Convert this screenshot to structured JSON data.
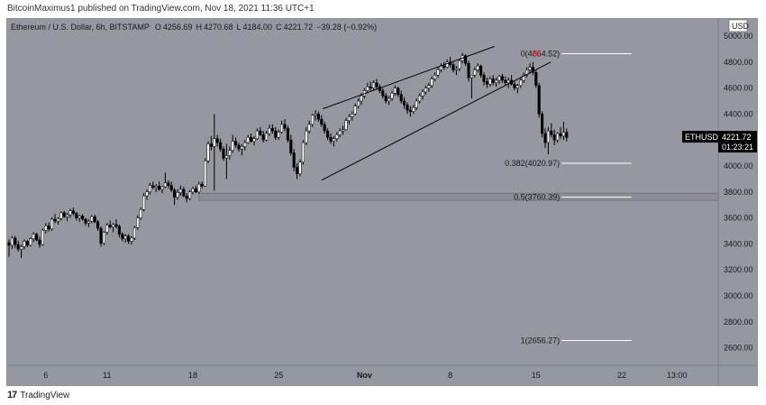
{
  "header": {
    "published": "BitcoinMaximus1 published on TradingView.com, Nov 18, 2021 11:36 UTC+1"
  },
  "legend": {
    "symbol": "Ethereum / U.S. Dollar, 6h, BITSTAMP",
    "o_label": "O",
    "o": "4256.69",
    "h_label": "H",
    "h": "4270.68",
    "l_label": "L",
    "l": "4184.00",
    "c_label": "C",
    "c": "4221.72",
    "change": "−39.28 (−0.92%)"
  },
  "price_tag": {
    "symbol": "ETHUSD",
    "price": "4221.72",
    "countdown": "01:23:21"
  },
  "footer": {
    "logo": "17",
    "brand": "TradingView"
  },
  "colors": {
    "plot_bg": "#9598a1",
    "axis_bg": "#9598a1",
    "up": "#ffffff",
    "down": "#000000",
    "marker": "#e53935",
    "fib_line": "#ffffff",
    "trend_line": "#000000"
  },
  "chart_data": {
    "type": "candlestick",
    "currency_label": "USD",
    "ylim": [
      2450,
      5150
    ],
    "y_ticks": [
      {
        "v": 5000,
        "label": "5000.00"
      },
      {
        "v": 4800,
        "label": "4800.00"
      },
      {
        "v": 4600,
        "label": "4600.00"
      },
      {
        "v": 4400,
        "label": "4400.00"
      },
      {
        "v": 4200,
        "label": "4200.00"
      },
      {
        "v": 4000,
        "label": "4000.00"
      },
      {
        "v": 3800,
        "label": "3800.00"
      },
      {
        "v": 3600,
        "label": "3600.00"
      },
      {
        "v": 3400,
        "label": "3400.00"
      },
      {
        "v": 3200,
        "label": "3200.00"
      },
      {
        "v": 3000,
        "label": "3000.00"
      },
      {
        "v": 2800,
        "label": "2800.00"
      },
      {
        "v": 2600,
        "label": "2600.00"
      }
    ],
    "x_ticks": [
      {
        "d": 6,
        "label": "6"
      },
      {
        "d": 11,
        "label": "11"
      },
      {
        "d": 18,
        "label": "18"
      },
      {
        "d": 25,
        "label": "25"
      },
      {
        "d": 32,
        "label": "Nov"
      },
      {
        "d": 39,
        "label": "8"
      },
      {
        "d": 46,
        "label": "15"
      },
      {
        "d": 53,
        "label": "22"
      },
      {
        "d": 57.5,
        "label": "13:00"
      }
    ],
    "xlim": [
      2.5,
      60
    ],
    "fib_levels": [
      {
        "ratio": "0",
        "value": 4864.52,
        "label": "0(4864.52)"
      },
      {
        "ratio": "0.382",
        "value": 4020.97,
        "label": "0.382(4020.97)"
      },
      {
        "ratio": "0.5",
        "value": 3760.39,
        "label": "0.5(3760.39)"
      },
      {
        "ratio": "1",
        "value": 2656.27,
        "label": "1(2656.27)"
      }
    ],
    "fib_d_range": [
      47.5,
      53.5
    ],
    "support_band": {
      "low": 3735,
      "high": 3790,
      "d_start": 18.5
    },
    "channel": {
      "upper": {
        "d1": 28.6,
        "y1": 4440,
        "d2": 42.6,
        "y2": 4920
      },
      "lower": {
        "d1": 28.5,
        "y1": 3890,
        "d2": 47.2,
        "y2": 4800
      }
    },
    "marker": {
      "d": 46,
      "y": 4845
    },
    "candles": [
      [
        3,
        3410,
        3435,
        3300,
        3390
      ],
      [
        3.25,
        3390,
        3460,
        3360,
        3445
      ],
      [
        3.5,
        3445,
        3460,
        3370,
        3395
      ],
      [
        3.75,
        3395,
        3425,
        3340,
        3360
      ],
      [
        4,
        3360,
        3395,
        3290,
        3380
      ],
      [
        4.25,
        3380,
        3435,
        3355,
        3420
      ],
      [
        4.5,
        3420,
        3430,
        3375,
        3390
      ],
      [
        4.75,
        3390,
        3450,
        3380,
        3440
      ],
      [
        5,
        3440,
        3490,
        3415,
        3475
      ],
      [
        5.25,
        3475,
        3485,
        3420,
        3430
      ],
      [
        5.5,
        3430,
        3455,
        3370,
        3395
      ],
      [
        5.75,
        3395,
        3520,
        3385,
        3505
      ],
      [
        6,
        3505,
        3560,
        3480,
        3540
      ],
      [
        6.25,
        3540,
        3565,
        3495,
        3515
      ],
      [
        6.5,
        3515,
        3605,
        3500,
        3590
      ],
      [
        6.75,
        3590,
        3630,
        3560,
        3575
      ],
      [
        7,
        3575,
        3605,
        3550,
        3595
      ],
      [
        7.25,
        3595,
        3650,
        3580,
        3640
      ],
      [
        7.5,
        3640,
        3655,
        3600,
        3610
      ],
      [
        7.75,
        3610,
        3640,
        3575,
        3625
      ],
      [
        8,
        3625,
        3670,
        3600,
        3655
      ],
      [
        8.25,
        3655,
        3680,
        3620,
        3635
      ],
      [
        8.5,
        3635,
        3645,
        3580,
        3600
      ],
      [
        8.75,
        3600,
        3625,
        3570,
        3615
      ],
      [
        9,
        3615,
        3630,
        3580,
        3590
      ],
      [
        9.25,
        3590,
        3600,
        3540,
        3560
      ],
      [
        9.5,
        3560,
        3590,
        3530,
        3575
      ],
      [
        9.75,
        3575,
        3620,
        3560,
        3610
      ],
      [
        10,
        3610,
        3625,
        3560,
        3570
      ],
      [
        10.25,
        3570,
        3585,
        3500,
        3520
      ],
      [
        10.5,
        3520,
        3535,
        3380,
        3405
      ],
      [
        10.75,
        3405,
        3500,
        3390,
        3490
      ],
      [
        11,
        3490,
        3560,
        3470,
        3545
      ],
      [
        11.25,
        3545,
        3580,
        3520,
        3530
      ],
      [
        11.5,
        3530,
        3560,
        3490,
        3550
      ],
      [
        11.75,
        3550,
        3590,
        3520,
        3535
      ],
      [
        12,
        3535,
        3550,
        3450,
        3475
      ],
      [
        12.25,
        3475,
        3490,
        3420,
        3440
      ],
      [
        12.5,
        3440,
        3475,
        3410,
        3460
      ],
      [
        12.75,
        3460,
        3475,
        3400,
        3420
      ],
      [
        13,
        3420,
        3460,
        3395,
        3445
      ],
      [
        13.25,
        3445,
        3540,
        3430,
        3525
      ],
      [
        13.5,
        3525,
        3620,
        3510,
        3600
      ],
      [
        13.75,
        3600,
        3680,
        3585,
        3665
      ],
      [
        14,
        3665,
        3790,
        3650,
        3770
      ],
      [
        14.25,
        3770,
        3820,
        3740,
        3800
      ],
      [
        14.5,
        3800,
        3870,
        3780,
        3850
      ],
      [
        14.75,
        3850,
        3880,
        3820,
        3835
      ],
      [
        15,
        3835,
        3860,
        3800,
        3845
      ],
      [
        15.25,
        3845,
        3880,
        3810,
        3820
      ],
      [
        15.5,
        3820,
        3850,
        3790,
        3840
      ],
      [
        15.75,
        3840,
        3950,
        3830,
        3870
      ],
      [
        16,
        3870,
        3890,
        3830,
        3850
      ],
      [
        16.25,
        3850,
        3880,
        3800,
        3815
      ],
      [
        16.5,
        3815,
        3830,
        3700,
        3760
      ],
      [
        16.75,
        3760,
        3820,
        3740,
        3795
      ],
      [
        17,
        3795,
        3850,
        3770,
        3820
      ],
      [
        17.25,
        3820,
        3840,
        3760,
        3770
      ],
      [
        17.5,
        3770,
        3790,
        3720,
        3750
      ],
      [
        17.75,
        3750,
        3815,
        3735,
        3800
      ],
      [
        18,
        3800,
        3840,
        3780,
        3825
      ],
      [
        18.25,
        3825,
        3850,
        3790,
        3800
      ],
      [
        18.5,
        3800,
        3880,
        3785,
        3860
      ],
      [
        18.75,
        3860,
        3880,
        3830,
        3845
      ],
      [
        19,
        3845,
        4060,
        3840,
        4040
      ],
      [
        19.25,
        4040,
        4190,
        4020,
        4170
      ],
      [
        19.5,
        4170,
        4230,
        4120,
        4150
      ],
      [
        19.75,
        4150,
        4400,
        3810,
        4210
      ],
      [
        20,
        4210,
        4240,
        4150,
        4180
      ],
      [
        20.25,
        4180,
        4210,
        4110,
        4130
      ],
      [
        20.5,
        4130,
        4150,
        4040,
        4060
      ],
      [
        20.75,
        4060,
        4170,
        3900,
        4080
      ],
      [
        21,
        4080,
        4150,
        4050,
        4120
      ],
      [
        21.25,
        4120,
        4240,
        4100,
        4190
      ],
      [
        21.5,
        4190,
        4220,
        4140,
        4160
      ],
      [
        21.75,
        4160,
        4180,
        4110,
        4130
      ],
      [
        22,
        4130,
        4170,
        4080,
        4150
      ],
      [
        22.25,
        4150,
        4200,
        4120,
        4180
      ],
      [
        22.5,
        4180,
        4240,
        4170,
        4220
      ],
      [
        22.75,
        4220,
        4250,
        4180,
        4190
      ],
      [
        23,
        4190,
        4230,
        4160,
        4210
      ],
      [
        23.25,
        4210,
        4290,
        4200,
        4270
      ],
      [
        23.5,
        4270,
        4300,
        4230,
        4240
      ],
      [
        23.75,
        4240,
        4270,
        4180,
        4200
      ],
      [
        24,
        4200,
        4270,
        4190,
        4250
      ],
      [
        24.25,
        4250,
        4320,
        4230,
        4290
      ],
      [
        24.5,
        4290,
        4320,
        4250,
        4270
      ],
      [
        24.75,
        4270,
        4300,
        4200,
        4220
      ],
      [
        25,
        4220,
        4280,
        4200,
        4260
      ],
      [
        25.25,
        4260,
        4350,
        4250,
        4320
      ],
      [
        25.5,
        4320,
        4360,
        4270,
        4290
      ],
      [
        25.75,
        4290,
        4310,
        4180,
        4200
      ],
      [
        26,
        4200,
        4240,
        4080,
        4100
      ],
      [
        26.25,
        4100,
        4130,
        3960,
        3990
      ],
      [
        26.5,
        3990,
        4020,
        3900,
        3940
      ],
      [
        26.75,
        3940,
        4050,
        3920,
        4030
      ],
      [
        27,
        4030,
        4200,
        4010,
        4180
      ],
      [
        27.25,
        4180,
        4300,
        4160,
        4270
      ],
      [
        27.5,
        4270,
        4350,
        4250,
        4320
      ],
      [
        27.75,
        4320,
        4400,
        4300,
        4390
      ],
      [
        28,
        4390,
        4430,
        4350,
        4400
      ],
      [
        28.25,
        4400,
        4420,
        4340,
        4360
      ],
      [
        28.5,
        4360,
        4390,
        4300,
        4320
      ],
      [
        28.75,
        4320,
        4340,
        4250,
        4270
      ],
      [
        29,
        4270,
        4290,
        4200,
        4220
      ],
      [
        29.25,
        4220,
        4250,
        4170,
        4190
      ],
      [
        29.5,
        4190,
        4230,
        4150,
        4210
      ],
      [
        29.75,
        4210,
        4260,
        4190,
        4240
      ],
      [
        30,
        4240,
        4290,
        4220,
        4270
      ],
      [
        30.25,
        4270,
        4310,
        4240,
        4280
      ],
      [
        30.5,
        4280,
        4370,
        4270,
        4350
      ],
      [
        30.75,
        4350,
        4400,
        4320,
        4380
      ],
      [
        31,
        4380,
        4420,
        4350,
        4400
      ],
      [
        31.25,
        4400,
        4480,
        4390,
        4460
      ],
      [
        31.5,
        4460,
        4520,
        4440,
        4500
      ],
      [
        31.75,
        4500,
        4560,
        4470,
        4540
      ],
      [
        32,
        4540,
        4600,
        4520,
        4580
      ],
      [
        32.25,
        4580,
        4640,
        4560,
        4610
      ],
      [
        32.5,
        4610,
        4650,
        4570,
        4600
      ],
      [
        32.75,
        4600,
        4660,
        4580,
        4640
      ],
      [
        33,
        4640,
        4670,
        4590,
        4610
      ],
      [
        33.25,
        4610,
        4630,
        4560,
        4580
      ],
      [
        33.5,
        4580,
        4600,
        4520,
        4540
      ],
      [
        33.75,
        4540,
        4560,
        4480,
        4500
      ],
      [
        34,
        4500,
        4540,
        4470,
        4520
      ],
      [
        34.25,
        4520,
        4580,
        4500,
        4560
      ],
      [
        34.5,
        4560,
        4620,
        4540,
        4600
      ],
      [
        34.75,
        4600,
        4610,
        4530,
        4550
      ],
      [
        35,
        4550,
        4580,
        4480,
        4500
      ],
      [
        35.25,
        4500,
        4530,
        4440,
        4470
      ],
      [
        35.5,
        4470,
        4490,
        4400,
        4430
      ],
      [
        35.75,
        4430,
        4460,
        4380,
        4420
      ],
      [
        36,
        4420,
        4470,
        4400,
        4450
      ],
      [
        36.25,
        4450,
        4520,
        4430,
        4500
      ],
      [
        36.5,
        4500,
        4560,
        4480,
        4540
      ],
      [
        36.75,
        4540,
        4590,
        4510,
        4570
      ],
      [
        37,
        4570,
        4620,
        4550,
        4600
      ],
      [
        37.25,
        4600,
        4640,
        4570,
        4620
      ],
      [
        37.5,
        4620,
        4690,
        4600,
        4670
      ],
      [
        37.75,
        4670,
        4720,
        4650,
        4700
      ],
      [
        38,
        4700,
        4760,
        4680,
        4740
      ],
      [
        38.25,
        4740,
        4790,
        4720,
        4770
      ],
      [
        38.5,
        4770,
        4800,
        4740,
        4760
      ],
      [
        38.75,
        4760,
        4820,
        4750,
        4800
      ],
      [
        39,
        4800,
        4840,
        4760,
        4780
      ],
      [
        39.25,
        4780,
        4800,
        4720,
        4740
      ],
      [
        39.5,
        4740,
        4770,
        4700,
        4750
      ],
      [
        39.75,
        4750,
        4820,
        4730,
        4810
      ],
      [
        40,
        4810,
        4870,
        4790,
        4850
      ],
      [
        40.25,
        4850,
        4860,
        4770,
        4790
      ],
      [
        40.5,
        4790,
        4810,
        4650,
        4680
      ],
      [
        40.75,
        4680,
        4700,
        4520,
        4700
      ],
      [
        41,
        4700,
        4760,
        4680,
        4740
      ],
      [
        41.25,
        4740,
        4790,
        4720,
        4770
      ],
      [
        41.5,
        4770,
        4780,
        4680,
        4700
      ],
      [
        41.75,
        4700,
        4720,
        4620,
        4650
      ],
      [
        42,
        4650,
        4680,
        4600,
        4630
      ],
      [
        42.25,
        4630,
        4690,
        4610,
        4670
      ],
      [
        42.5,
        4670,
        4700,
        4620,
        4640
      ],
      [
        42.75,
        4640,
        4680,
        4610,
        4660
      ],
      [
        43,
        4660,
        4700,
        4630,
        4690
      ],
      [
        43.25,
        4690,
        4710,
        4640,
        4660
      ],
      [
        43.5,
        4660,
        4690,
        4620,
        4640
      ],
      [
        43.75,
        4640,
        4680,
        4600,
        4660
      ],
      [
        44,
        4660,
        4700,
        4620,
        4630
      ],
      [
        44.25,
        4630,
        4650,
        4580,
        4600
      ],
      [
        44.5,
        4600,
        4630,
        4560,
        4620
      ],
      [
        44.75,
        4620,
        4680,
        4600,
        4660
      ],
      [
        45,
        4660,
        4720,
        4640,
        4700
      ],
      [
        45.25,
        4700,
        4760,
        4680,
        4740
      ],
      [
        45.5,
        4740,
        4790,
        4710,
        4760
      ],
      [
        45.75,
        4760,
        4800,
        4700,
        4720
      ],
      [
        46,
        4720,
        4740,
        4600,
        4620
      ],
      [
        46.25,
        4620,
        4640,
        4370,
        4400
      ],
      [
        46.5,
        4400,
        4420,
        4220,
        4250
      ],
      [
        46.75,
        4250,
        4290,
        4140,
        4180
      ],
      [
        47,
        4180,
        4300,
        4090,
        4270
      ],
      [
        47.25,
        4270,
        4330,
        4220,
        4240
      ],
      [
        47.5,
        4240,
        4280,
        4160,
        4200
      ],
      [
        47.75,
        4200,
        4260,
        4180,
        4250
      ],
      [
        48,
        4250,
        4300,
        4210,
        4230
      ],
      [
        48.25,
        4230,
        4340,
        4200,
        4260
      ],
      [
        48.5,
        4260,
        4290,
        4190,
        4220
      ]
    ]
  }
}
